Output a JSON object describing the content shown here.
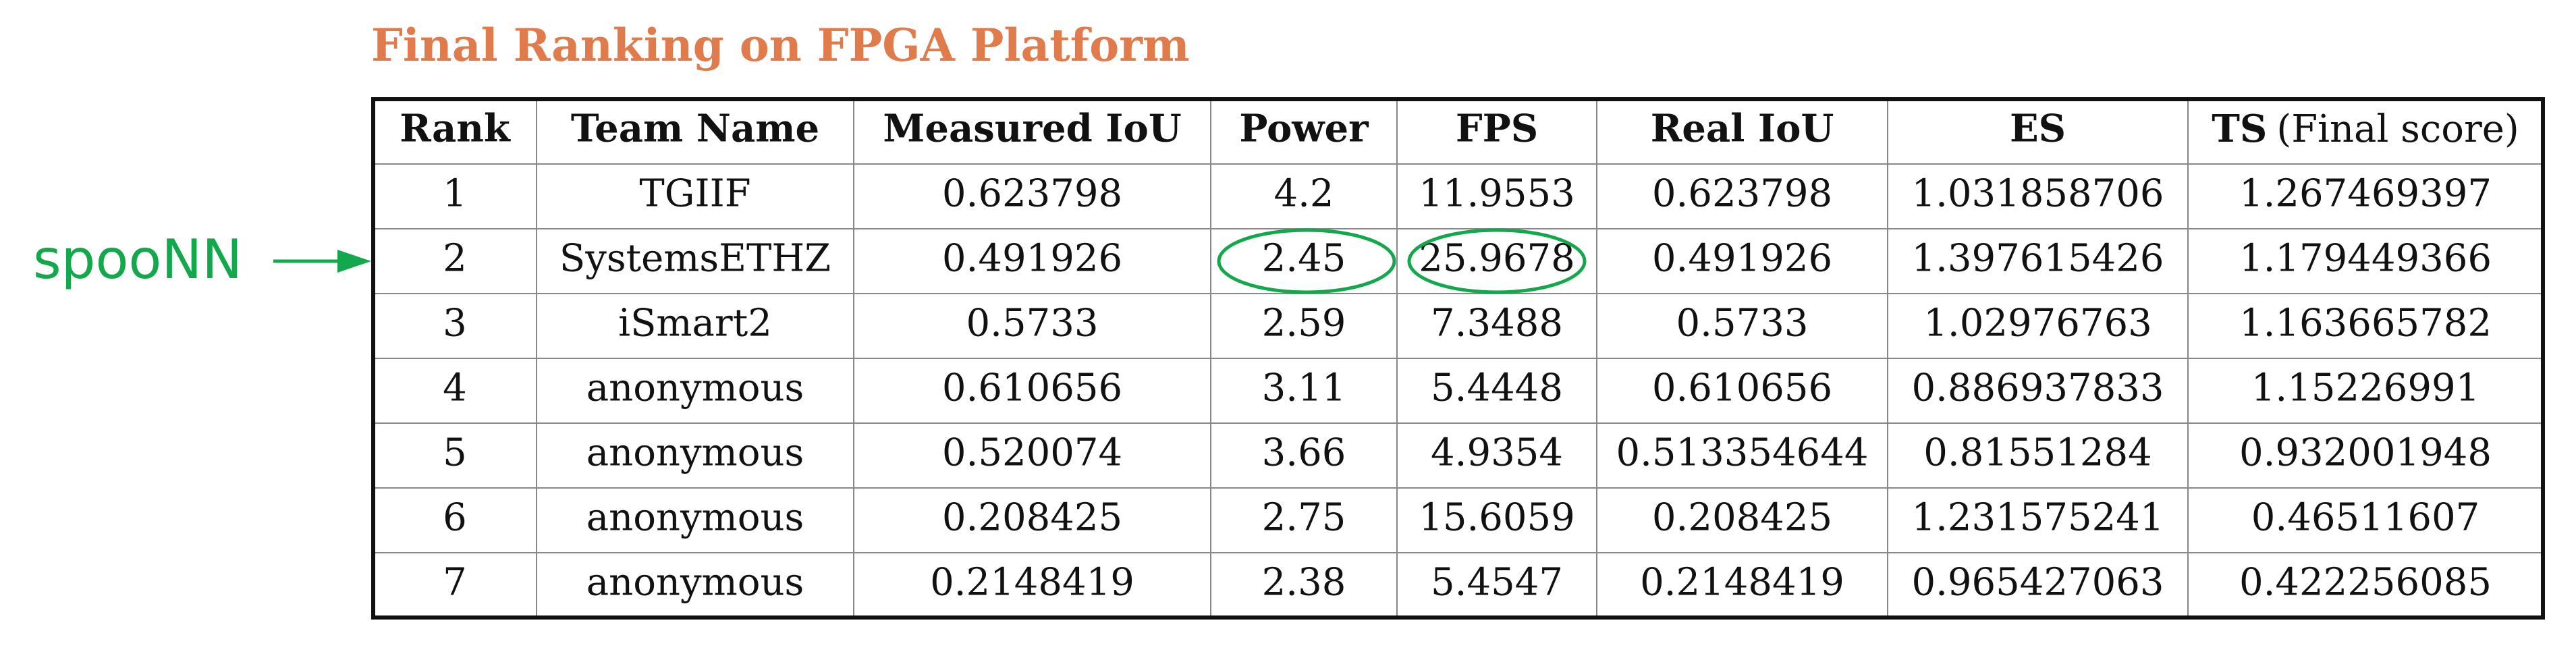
{
  "title": "Final Ranking on FPGA Platform",
  "annotation": "spooNN",
  "table": {
    "headers": [
      "Rank",
      "Team Name",
      "Measured IoU",
      "Power",
      "FPS",
      "Real IoU",
      "ES"
    ],
    "last_header": {
      "main": "TS",
      "note": "(Final score)"
    },
    "rows": [
      [
        "1",
        "TGIIF",
        "0.623798",
        "4.2",
        "11.9553",
        "0.623798",
        "1.031858706",
        "1.267469397"
      ],
      [
        "2",
        "SystemsETHZ",
        "0.491926",
        "2.45",
        "25.9678",
        "0.491926",
        "1.397615426",
        "1.179449366"
      ],
      [
        "3",
        "iSmart2",
        "0.5733",
        "2.59",
        "7.3488",
        "0.5733",
        "1.02976763",
        "1.163665782"
      ],
      [
        "4",
        "anonymous",
        "0.610656",
        "3.11",
        "5.4448",
        "0.610656",
        "0.886937833",
        "1.15226991"
      ],
      [
        "5",
        "anonymous",
        "0.520074",
        "3.66",
        "4.9354",
        "0.513354644",
        "0.81551284",
        "0.932001948"
      ],
      [
        "6",
        "anonymous",
        "0.208425",
        "2.75",
        "15.6059",
        "0.208425",
        "1.231575241",
        "0.46511607"
      ],
      [
        "7",
        "anonymous",
        "0.2148419",
        "2.38",
        "5.4547",
        "0.2148419",
        "0.965427063",
        "0.422256085"
      ]
    ]
  }
}
